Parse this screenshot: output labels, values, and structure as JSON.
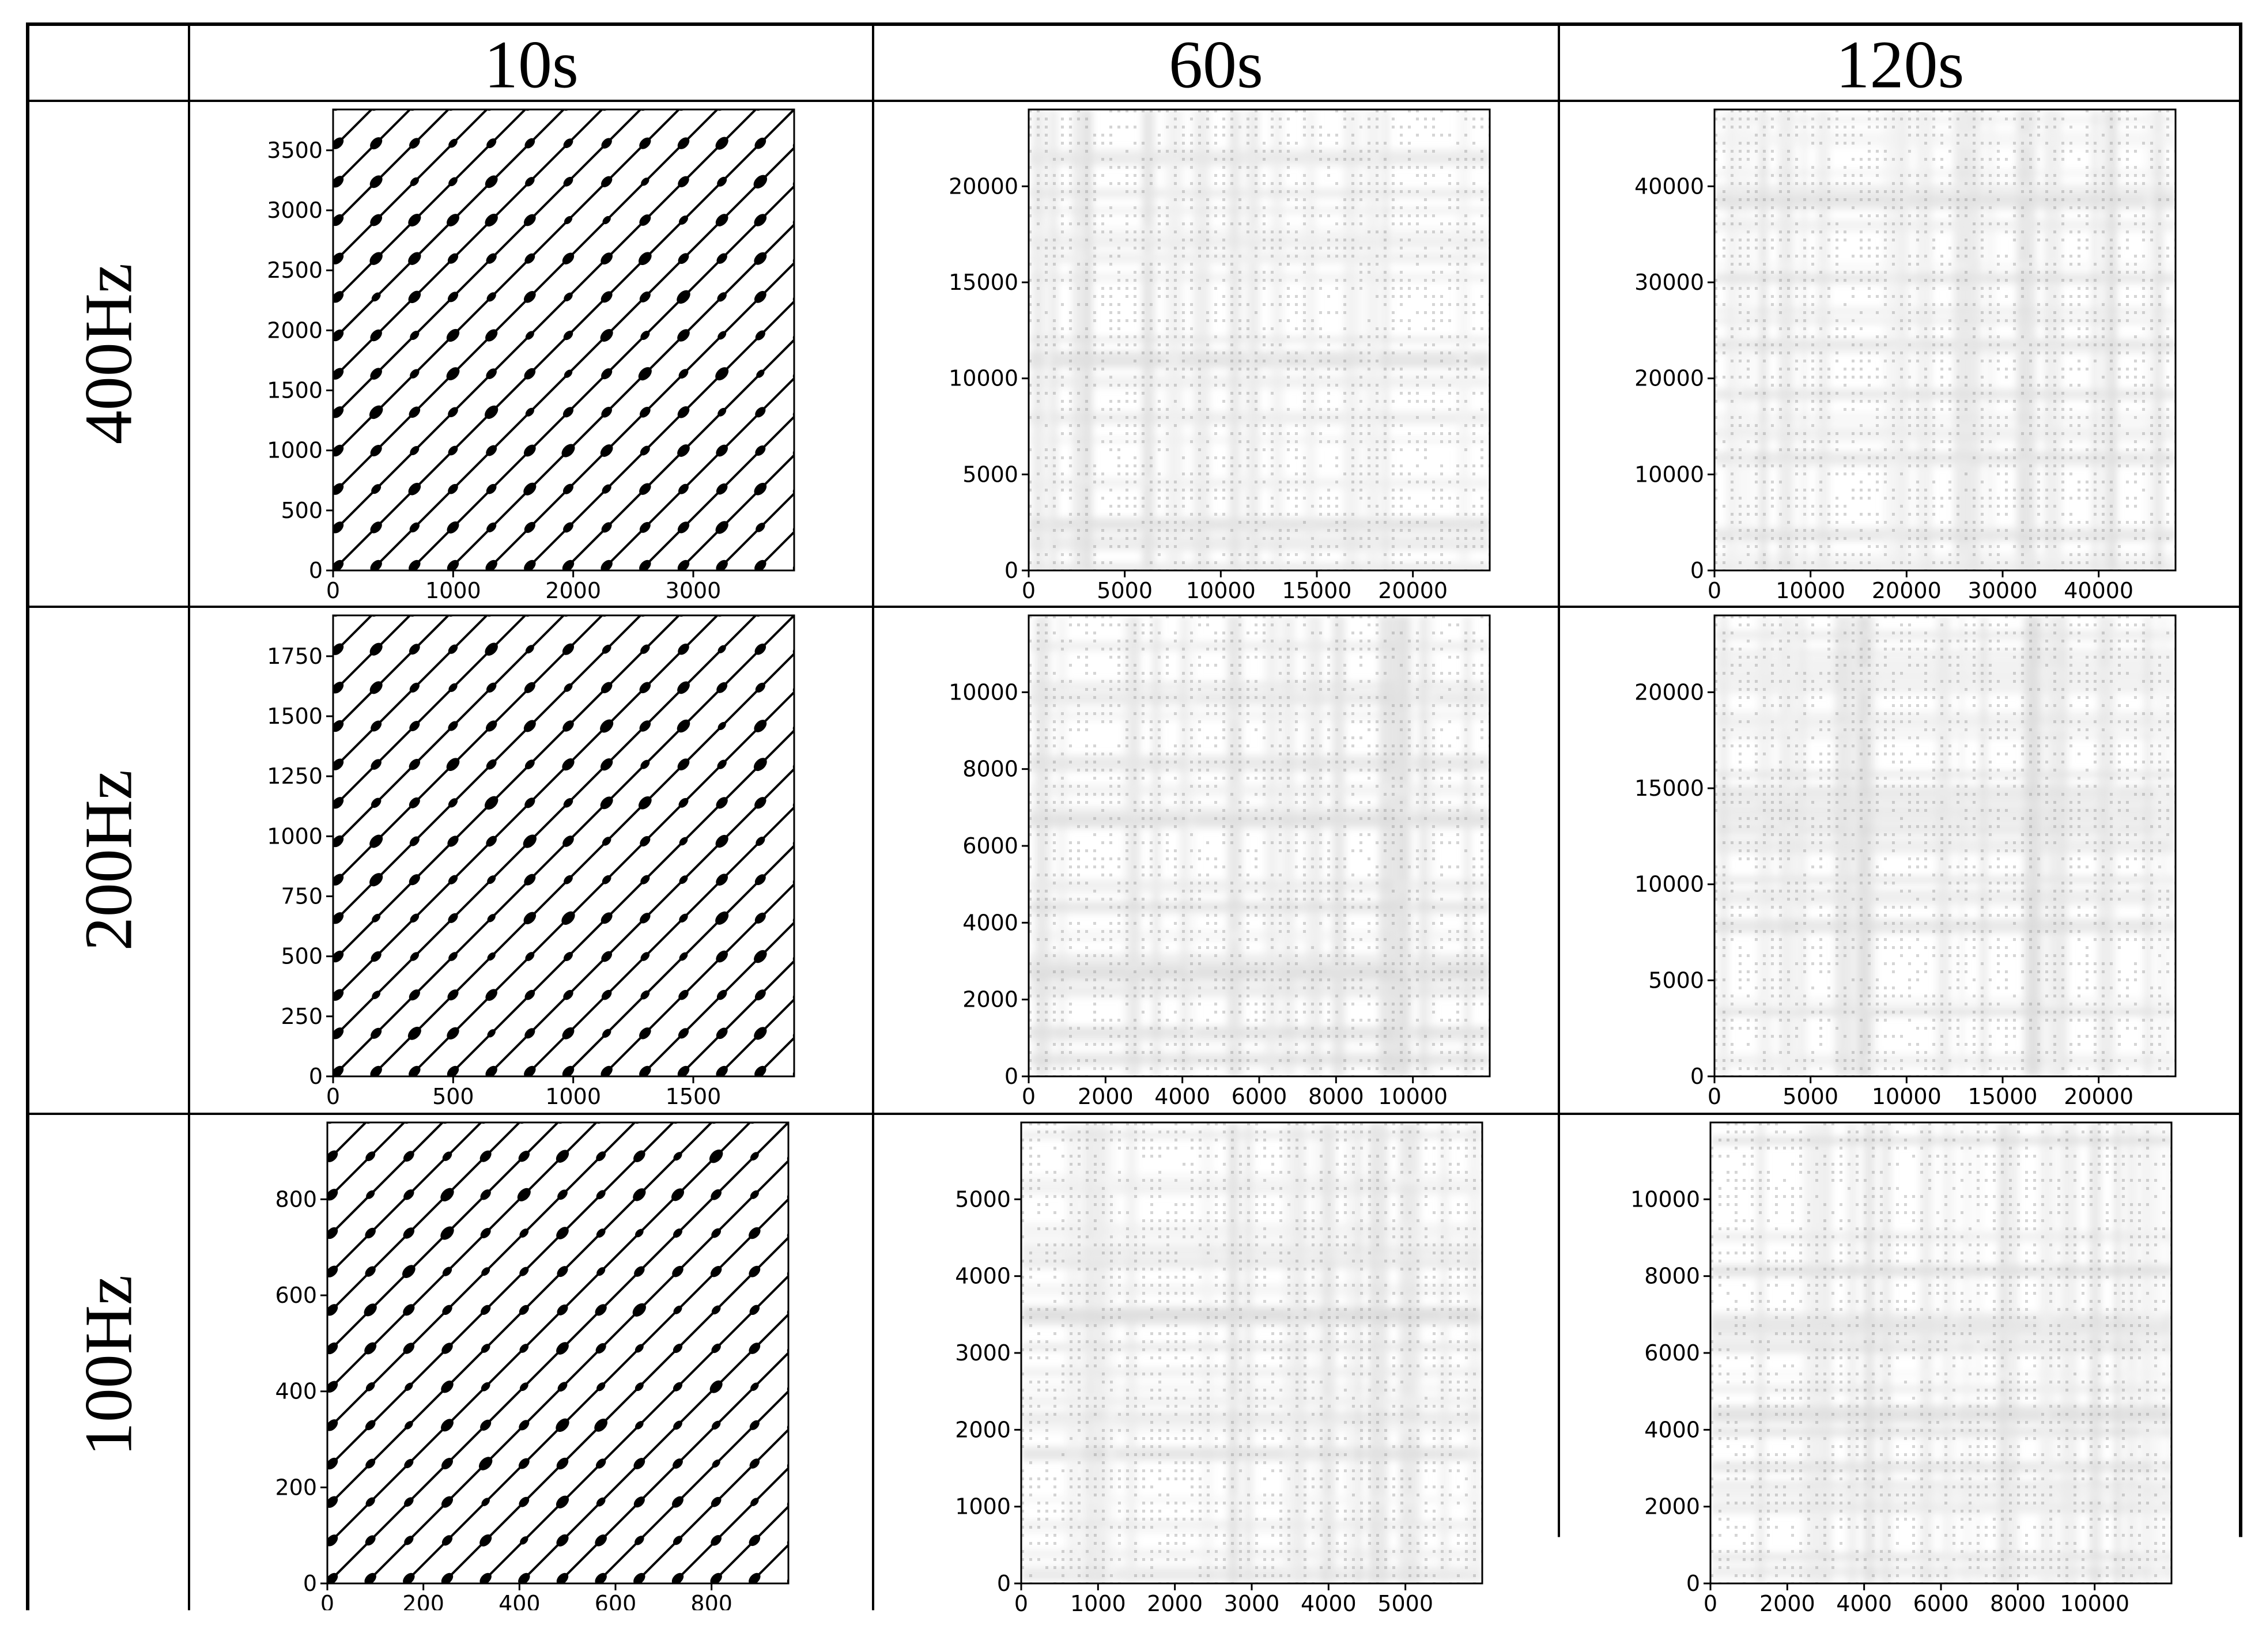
{
  "table": {
    "columns": [
      "10s",
      "60s",
      "120s"
    ],
    "rows": [
      "400Hz",
      "200Hz",
      "100Hz"
    ]
  },
  "chart_data": [
    {
      "type": "heatmap",
      "row": "400Hz",
      "column": "10s",
      "style": "blocks",
      "xlim": [
        0,
        3840
      ],
      "ylim": [
        0,
        3840
      ],
      "ncycles": 12,
      "xticks": [
        0,
        1000,
        2000,
        3000
      ],
      "yticks": [
        0,
        500,
        1000,
        1500,
        2000,
        2500,
        3000,
        3500
      ]
    },
    {
      "type": "heatmap",
      "row": "400Hz",
      "column": "60s",
      "style": "texture",
      "xlim": [
        0,
        24000
      ],
      "ylim": [
        0,
        24000
      ],
      "xticks": [
        0,
        5000,
        10000,
        15000,
        20000
      ],
      "yticks": [
        0,
        5000,
        10000,
        15000,
        20000
      ]
    },
    {
      "type": "heatmap",
      "row": "400Hz",
      "column": "120s",
      "style": "texture",
      "xlim": [
        0,
        48000
      ],
      "ylim": [
        0,
        48000
      ],
      "xticks": [
        0,
        10000,
        20000,
        30000,
        40000
      ],
      "yticks": [
        0,
        10000,
        20000,
        30000,
        40000
      ]
    },
    {
      "type": "heatmap",
      "row": "200Hz",
      "column": "10s",
      "style": "blocks",
      "xlim": [
        0,
        1920
      ],
      "ylim": [
        0,
        1920
      ],
      "ncycles": 12,
      "xticks": [
        0,
        500,
        1000,
        1500
      ],
      "yticks": [
        0,
        250,
        500,
        750,
        1000,
        1250,
        1500,
        1750
      ]
    },
    {
      "type": "heatmap",
      "row": "200Hz",
      "column": "60s",
      "style": "texture",
      "xlim": [
        0,
        12000
      ],
      "ylim": [
        0,
        12000
      ],
      "xticks": [
        0,
        2000,
        4000,
        6000,
        8000,
        10000
      ],
      "yticks": [
        0,
        2000,
        4000,
        6000,
        8000,
        10000
      ]
    },
    {
      "type": "heatmap",
      "row": "200Hz",
      "column": "120s",
      "style": "texture",
      "xlim": [
        0,
        24000
      ],
      "ylim": [
        0,
        24000
      ],
      "xticks": [
        0,
        5000,
        10000,
        15000,
        20000
      ],
      "yticks": [
        0,
        5000,
        10000,
        15000,
        20000
      ]
    },
    {
      "type": "heatmap",
      "row": "100Hz",
      "column": "10s",
      "style": "blocks",
      "xlim": [
        0,
        960
      ],
      "ylim": [
        0,
        960
      ],
      "ncycles": 12,
      "xticks": [
        0,
        200,
        400,
        600,
        800
      ],
      "yticks": [
        0,
        200,
        400,
        600,
        800
      ]
    },
    {
      "type": "heatmap",
      "row": "100Hz",
      "column": "60s",
      "style": "texture",
      "xlim": [
        0,
        6000
      ],
      "ylim": [
        0,
        6000
      ],
      "xticks": [
        0,
        1000,
        2000,
        3000,
        4000,
        5000
      ],
      "yticks": [
        0,
        1000,
        2000,
        3000,
        4000,
        5000
      ]
    },
    {
      "type": "heatmap",
      "row": "100Hz",
      "column": "120s",
      "style": "texture",
      "xlim": [
        0,
        12000
      ],
      "ylim": [
        0,
        12000
      ],
      "xticks": [
        0,
        2000,
        4000,
        6000,
        8000,
        10000
      ],
      "yticks": [
        0,
        2000,
        4000,
        6000,
        8000,
        10000
      ]
    }
  ]
}
